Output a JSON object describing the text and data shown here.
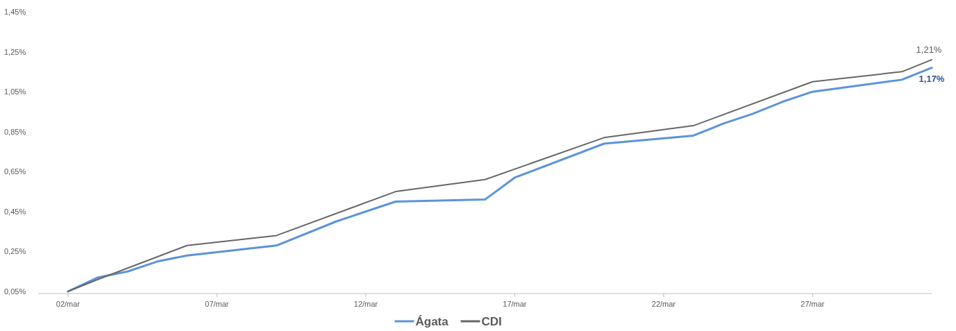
{
  "chart_data": {
    "type": "line",
    "xlim": [
      "--03-01",
      "--03-31"
    ],
    "xticks": [
      {
        "value": "--03-02",
        "label": "02/mar"
      },
      {
        "value": "--03-07",
        "label": "07/mar"
      },
      {
        "value": "--03-12",
        "label": "12/mar"
      },
      {
        "value": "--03-17",
        "label": "17/mar"
      },
      {
        "value": "--03-22",
        "label": "22/mar"
      },
      {
        "value": "--03-27",
        "label": "27/mar"
      }
    ],
    "ylim": [
      0.05,
      1.45
    ],
    "yticks": [
      {
        "value": 0.05,
        "label": "0,05%"
      },
      {
        "value": 0.25,
        "label": "0,25%"
      },
      {
        "value": 0.45,
        "label": "0,45%"
      },
      {
        "value": 0.65,
        "label": "0,65%"
      },
      {
        "value": 0.85,
        "label": "0,85%"
      },
      {
        "value": 1.05,
        "label": "1,05%"
      },
      {
        "value": 1.25,
        "label": "1,25%"
      },
      {
        "value": 1.45,
        "label": "1,45%"
      }
    ],
    "grid": false,
    "legend": "bottom",
    "marker": "none",
    "line_style": "solid",
    "series": [
      {
        "name": "Ágata",
        "color": "#5b93d9",
        "x": [
          "--03-02",
          "--03-03",
          "--03-04",
          "--03-05",
          "--03-06",
          "--03-09",
          "--03-11",
          "--03-13",
          "--03-16",
          "--03-17",
          "--03-20",
          "--03-23",
          "--03-24",
          "--03-25",
          "--03-26",
          "--03-27",
          "--03-30",
          "--03-31"
        ],
        "values": [
          0.05,
          0.12,
          0.15,
          0.2,
          0.23,
          0.28,
          0.4,
          0.5,
          0.51,
          0.62,
          0.79,
          0.83,
          0.89,
          0.94,
          1.0,
          1.05,
          1.11,
          1.17
        ],
        "value_labels": [
          null,
          null,
          null,
          null,
          null,
          null,
          null,
          null,
          null,
          null,
          null,
          null,
          null,
          null,
          null,
          null,
          null,
          "1,17%"
        ]
      },
      {
        "name": "CDI",
        "color": "#666666",
        "x": [
          "--03-02",
          "--03-03",
          "--03-06",
          "--03-09",
          "--03-13",
          "--03-16",
          "--03-20",
          "--03-23",
          "--03-27",
          "--03-30",
          "--03-31"
        ],
        "values": [
          0.05,
          0.11,
          0.28,
          0.33,
          0.55,
          0.61,
          0.82,
          0.88,
          1.1,
          1.15,
          1.21
        ],
        "value_labels": [
          null,
          null,
          null,
          null,
          null,
          null,
          null,
          null,
          null,
          null,
          "1,21%"
        ]
      }
    ]
  }
}
